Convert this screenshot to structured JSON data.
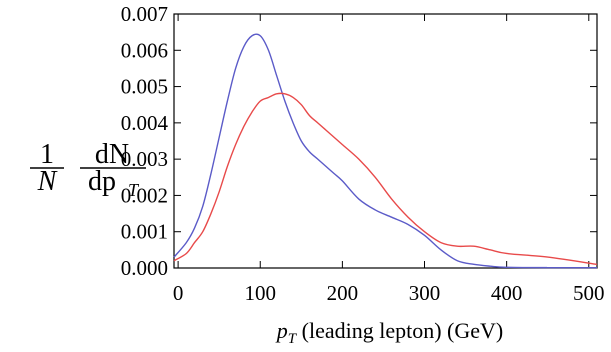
{
  "chart_data": {
    "type": "line",
    "xlabel": {
      "var": "p",
      "sub": "T",
      "text": " (leading lepton) (GeV)"
    },
    "ylabel": {
      "one": "1",
      "dN": "dN",
      "N": "N",
      "dp": "dp",
      "sub": "T"
    },
    "xlim": [
      -5,
      510
    ],
    "ylim": [
      0,
      0.007
    ],
    "xticks": [
      0,
      100,
      200,
      300,
      400,
      500
    ],
    "xtick_labels": [
      "0",
      "100",
      "200",
      "300",
      "400",
      "500"
    ],
    "yticks": [
      0,
      0.001,
      0.002,
      0.003,
      0.004,
      0.005,
      0.006,
      0.007
    ],
    "ytick_labels": [
      "0.000",
      "0.001",
      "0.002",
      "0.003",
      "0.004",
      "0.005",
      "0.006",
      "0.007"
    ],
    "grid": false,
    "series": [
      {
        "color": "#5b5bc8",
        "x": [
          -5,
          10,
          20,
          30,
          40,
          50,
          60,
          70,
          80,
          90,
          100,
          110,
          120,
          130,
          140,
          150,
          160,
          170,
          180,
          190,
          200,
          220,
          240,
          260,
          280,
          300,
          320,
          340,
          360,
          380,
          400,
          450,
          510
        ],
        "y": [
          0.0003,
          0.0007,
          0.0011,
          0.0017,
          0.0026,
          0.0036,
          0.0046,
          0.0055,
          0.0061,
          0.0064,
          0.0064,
          0.006,
          0.0053,
          0.0046,
          0.004,
          0.0035,
          0.0032,
          0.003,
          0.0028,
          0.0026,
          0.0024,
          0.0019,
          0.0016,
          0.0014,
          0.0012,
          0.0009,
          0.0005,
          0.0002,
          0.0001,
          5e-05,
          2e-05,
          1e-05,
          1e-05
        ]
      },
      {
        "color": "#e84a4a",
        "x": [
          -5,
          10,
          20,
          30,
          40,
          50,
          60,
          70,
          80,
          90,
          100,
          110,
          120,
          130,
          140,
          150,
          160,
          170,
          180,
          190,
          200,
          220,
          240,
          260,
          280,
          300,
          320,
          340,
          360,
          380,
          400,
          450,
          510
        ],
        "y": [
          0.0002,
          0.0004,
          0.0007,
          0.001,
          0.0015,
          0.0021,
          0.0028,
          0.0034,
          0.0039,
          0.0043,
          0.0046,
          0.0047,
          0.0048,
          0.0048,
          0.0047,
          0.0045,
          0.0042,
          0.004,
          0.0038,
          0.0036,
          0.0034,
          0.003,
          0.0025,
          0.0019,
          0.0014,
          0.001,
          0.0007,
          0.0006,
          0.0006,
          0.0005,
          0.0004,
          0.0003,
          0.0001
        ]
      }
    ]
  }
}
